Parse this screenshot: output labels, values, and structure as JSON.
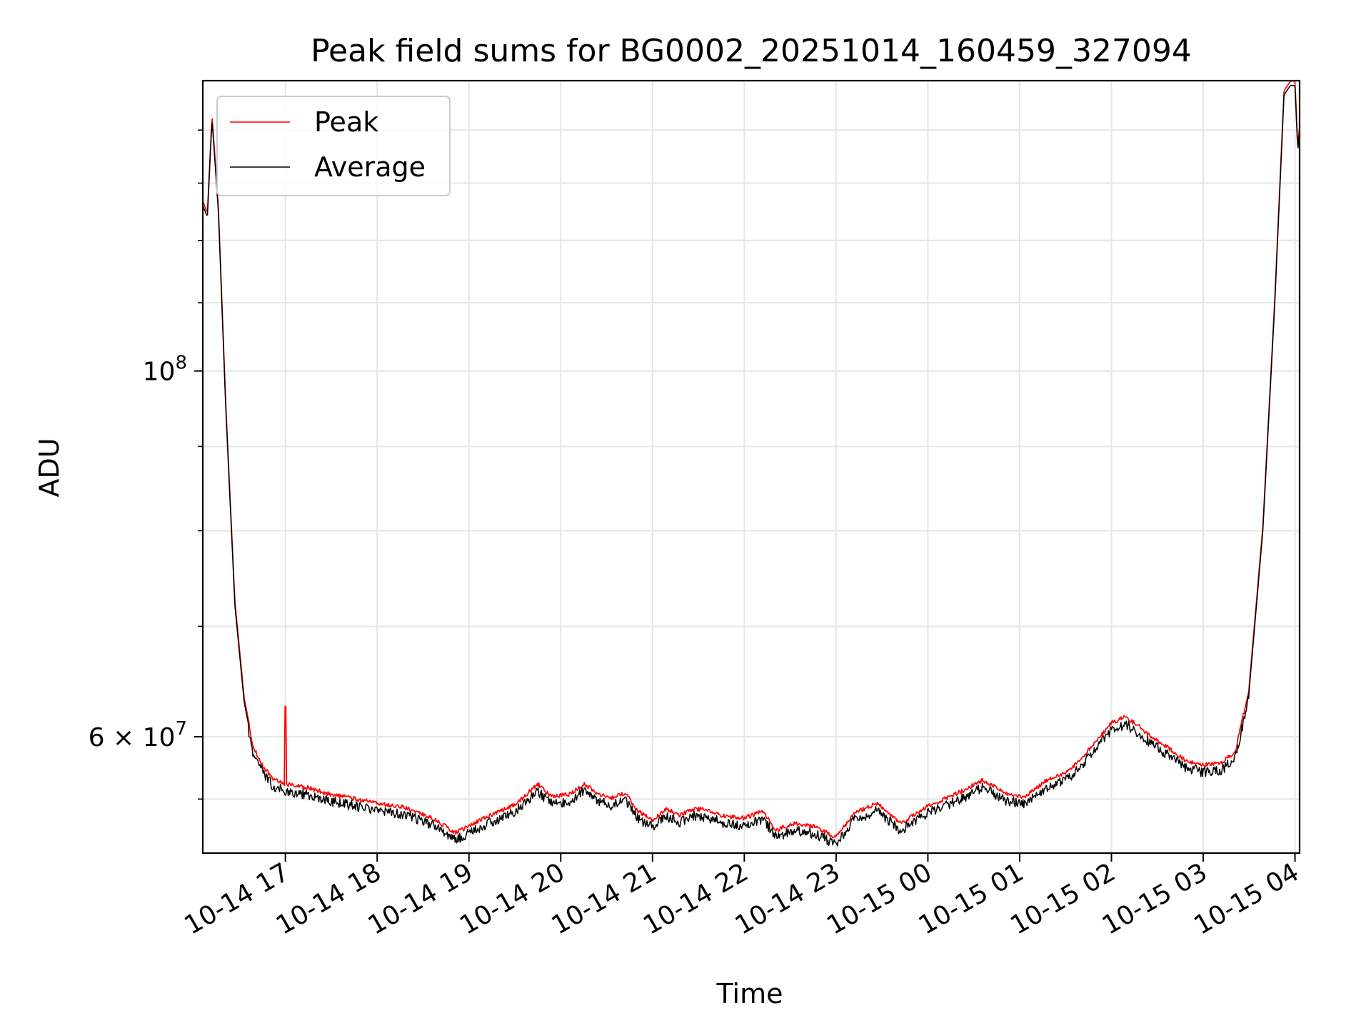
{
  "chart_data": {
    "type": "line",
    "title": "Peak field sums for BG0002_20251014_160459_327094",
    "xlabel": "Time",
    "ylabel": "ADU",
    "yscale": "log",
    "grid": true,
    "legend_position": "upper-left",
    "x_range_hours": [
      16.1,
      28.05
    ],
    "ylim": [
      51000000,
      150000000
    ],
    "x_ticks": [
      {
        "hour": 17,
        "label": "10-14 17"
      },
      {
        "hour": 18,
        "label": "10-14 18"
      },
      {
        "hour": 19,
        "label": "10-14 19"
      },
      {
        "hour": 20,
        "label": "10-14 20"
      },
      {
        "hour": 21,
        "label": "10-14 21"
      },
      {
        "hour": 22,
        "label": "10-14 22"
      },
      {
        "hour": 23,
        "label": "10-14 23"
      },
      {
        "hour": 24,
        "label": "10-15 00"
      },
      {
        "hour": 25,
        "label": "10-15 01"
      },
      {
        "hour": 26,
        "label": "10-15 02"
      },
      {
        "hour": 27,
        "label": "10-15 03"
      },
      {
        "hour": 28,
        "label": "10-15 04"
      }
    ],
    "y_major_ticks": [
      {
        "value": 100000000,
        "base": "10",
        "exp": "8",
        "prefix": ""
      },
      {
        "value": 60000000,
        "base": "10",
        "exp": "7",
        "prefix": "6 × "
      }
    ],
    "y_minor_ticks": [
      60000000,
      70000000,
      80000000,
      90000000,
      100000000,
      110000000,
      120000000,
      130000000,
      140000000,
      55000000
    ],
    "series": [
      {
        "name": "Peak",
        "color": "#ff0000",
        "offset_factor": 1.006,
        "x": [
          16.1,
          16.15,
          16.2,
          16.27,
          16.35,
          16.45,
          16.55,
          16.65,
          16.75,
          16.85,
          17.0,
          17.2,
          17.5,
          17.8,
          18.0,
          18.3,
          18.6,
          18.85,
          19.0,
          19.2,
          19.5,
          19.75,
          19.9,
          20.1,
          20.25,
          20.4,
          20.55,
          20.7,
          20.85,
          21.0,
          21.15,
          21.3,
          21.45,
          21.6,
          21.8,
          22.0,
          22.2,
          22.35,
          22.55,
          22.75,
          23.0,
          23.2,
          23.45,
          23.7,
          24.0,
          24.3,
          24.6,
          24.85,
          25.05,
          25.3,
          25.55,
          25.8,
          26.0,
          26.15,
          26.3,
          26.45,
          26.6,
          26.8,
          27.0,
          27.2,
          27.35,
          27.5,
          27.65,
          27.78,
          27.88,
          27.95,
          28.0,
          28.03,
          28.05
        ],
        "y": [
          126000000,
          124000000,
          142000000,
          125000000,
          95000000,
          72000000,
          63000000,
          59000000,
          57500000,
          56500000,
          56000000,
          55800000,
          55200000,
          54800000,
          54500000,
          54200000,
          53400000,
          52300000,
          52800000,
          53500000,
          54400000,
          56000000,
          55000000,
          55200000,
          56000000,
          55300000,
          54900000,
          55300000,
          53900000,
          53200000,
          54100000,
          53600000,
          54100000,
          54000000,
          53500000,
          53400000,
          53900000,
          52500000,
          53000000,
          52800000,
          52000000,
          53800000,
          54500000,
          53000000,
          54300000,
          55200000,
          56300000,
          55300000,
          55000000,
          56300000,
          57100000,
          59100000,
          61000000,
          61500000,
          60700000,
          59700000,
          59000000,
          57900000,
          57500000,
          57700000,
          58600000,
          64000000,
          80000000,
          110000000,
          147000000,
          149000000,
          149000000,
          136000000,
          140000000
        ]
      },
      {
        "name": "Average",
        "color": "#000000",
        "offset_factor": 1.0,
        "x": [
          16.1,
          16.15,
          16.2,
          16.27,
          16.35,
          16.45,
          16.55,
          16.65,
          16.75,
          16.85,
          17.0,
          17.2,
          17.5,
          17.8,
          18.0,
          18.3,
          18.6,
          18.85,
          19.0,
          19.2,
          19.5,
          19.75,
          19.9,
          20.1,
          20.25,
          20.4,
          20.55,
          20.7,
          20.85,
          21.0,
          21.15,
          21.3,
          21.45,
          21.6,
          21.8,
          22.0,
          22.2,
          22.35,
          22.55,
          22.75,
          23.0,
          23.2,
          23.45,
          23.7,
          24.0,
          24.3,
          24.6,
          24.85,
          25.05,
          25.3,
          25.55,
          25.8,
          26.0,
          26.15,
          26.3,
          26.45,
          26.6,
          26.8,
          27.0,
          27.2,
          27.35,
          27.5,
          27.65,
          27.78,
          27.88,
          27.95,
          28.0,
          28.03,
          28.05
        ],
        "y": [
          126000000,
          124000000,
          142000000,
          125000000,
          95000000,
          72000000,
          63000000,
          59000000,
          57500000,
          56500000,
          56000000,
          55800000,
          55200000,
          54800000,
          54500000,
          54200000,
          53400000,
          52300000,
          52800000,
          53500000,
          54400000,
          56000000,
          55000000,
          55200000,
          56000000,
          55300000,
          54900000,
          55300000,
          53900000,
          53200000,
          54100000,
          53600000,
          54100000,
          54000000,
          53500000,
          53400000,
          53900000,
          52500000,
          53000000,
          52800000,
          52000000,
          53800000,
          54500000,
          53000000,
          54300000,
          55200000,
          56300000,
          55300000,
          55000000,
          56300000,
          57100000,
          59100000,
          61000000,
          61500000,
          60700000,
          59700000,
          59000000,
          57900000,
          57500000,
          57700000,
          58600000,
          64000000,
          80000000,
          110000000,
          147000000,
          149000000,
          149000000,
          136000000,
          140000000
        ]
      }
    ],
    "spike": {
      "series": "Peak",
      "hour": 17.0,
      "value": 62600000
    }
  }
}
